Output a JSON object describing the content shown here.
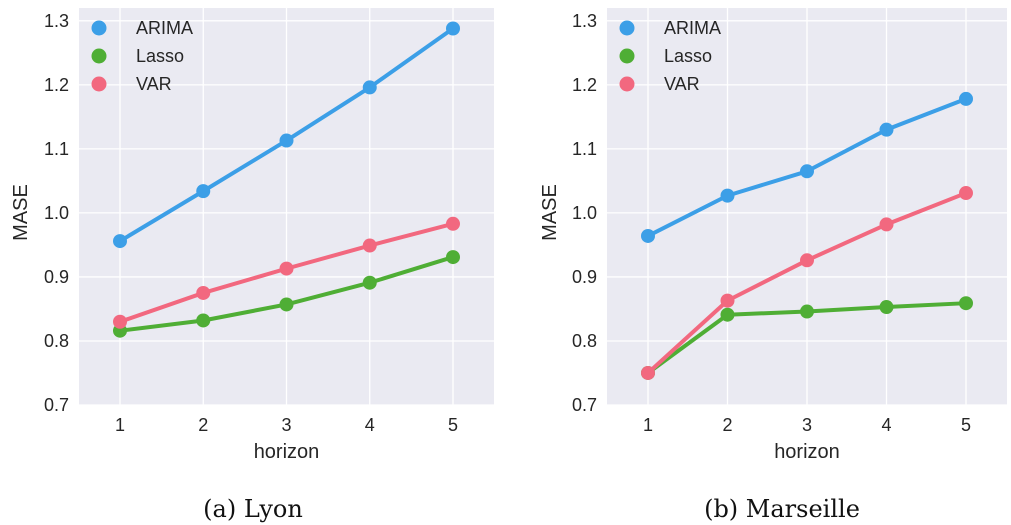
{
  "chart_data": [
    {
      "type": "line",
      "caption": "(a) Lyon",
      "xlabel": "horizon",
      "ylabel": "MASE",
      "x": [
        1,
        2,
        3,
        4,
        5
      ],
      "x_tick_labels": [
        "1",
        "2",
        "3",
        "4",
        "5"
      ],
      "ylim": [
        0.7,
        1.32
      ],
      "y_ticks": [
        0.7,
        0.8,
        0.9,
        1.0,
        1.1,
        1.2,
        1.3
      ],
      "y_tick_labels": [
        "0.7",
        "0.8",
        "0.9",
        "1.0",
        "1.1",
        "1.2",
        "1.3"
      ],
      "grid": true,
      "legend_position": "top-left",
      "series": [
        {
          "name": "ARIMA",
          "color": "#3c9fe7",
          "values": [
            0.956,
            1.034,
            1.113,
            1.196,
            1.288
          ]
        },
        {
          "name": "Lasso",
          "color": "#4fae35",
          "values": [
            0.816,
            0.832,
            0.857,
            0.891,
            0.931
          ]
        },
        {
          "name": "VAR",
          "color": "#f2687f",
          "values": [
            0.83,
            0.875,
            0.913,
            0.949,
            0.983
          ]
        }
      ]
    },
    {
      "type": "line",
      "caption": "(b) Marseille",
      "xlabel": "horizon",
      "ylabel": "MASE",
      "x": [
        1,
        2,
        3,
        4,
        5
      ],
      "x_tick_labels": [
        "1",
        "2",
        "3",
        "4",
        "5"
      ],
      "ylim": [
        0.7,
        1.32
      ],
      "y_ticks": [
        0.7,
        0.8,
        0.9,
        1.0,
        1.1,
        1.2,
        1.3
      ],
      "y_tick_labels": [
        "0.7",
        "0.8",
        "0.9",
        "1.0",
        "1.1",
        "1.2",
        "1.3"
      ],
      "grid": true,
      "legend_position": "top-left",
      "series": [
        {
          "name": "ARIMA",
          "color": "#3c9fe7",
          "values": [
            0.964,
            1.027,
            1.065,
            1.13,
            1.178
          ]
        },
        {
          "name": "Lasso",
          "color": "#4fae35",
          "values": [
            0.75,
            0.841,
            0.846,
            0.853,
            0.859
          ]
        },
        {
          "name": "VAR",
          "color": "#f2687f",
          "values": [
            0.75,
            0.863,
            0.926,
            0.982,
            1.031
          ]
        }
      ]
    }
  ],
  "style": {
    "plot_background": "#eaeaf2",
    "grid_color": "#ffffff",
    "text_color": "#262626"
  }
}
